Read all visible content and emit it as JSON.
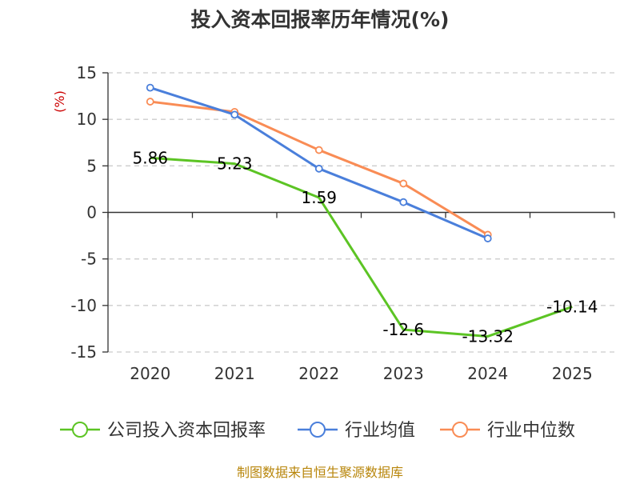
{
  "chart_data": {
    "type": "line",
    "title": "投入资本回报率历年情况(%)",
    "ylabel": "(%)",
    "xlabel": "",
    "categories": [
      "2020",
      "2021",
      "2022",
      "2023",
      "2024",
      "2025"
    ],
    "ylim": [
      -15,
      15
    ],
    "yticks": [
      15,
      10,
      5,
      0,
      -5,
      -10,
      -15
    ],
    "grid": true,
    "legend_position": "bottom",
    "series": [
      {
        "name": "公司投入资本回报率",
        "color": "#5cc424",
        "values": [
          5.86,
          5.23,
          1.59,
          -12.6,
          -13.32,
          -10.14
        ],
        "labels": [
          "5.86",
          "5.23",
          "1.59",
          "-12.6",
          "-13.32",
          "-10.14"
        ]
      },
      {
        "name": "行业均值",
        "color": "#4a7fdb",
        "values": [
          13.4,
          10.5,
          4.7,
          1.1,
          -2.8,
          null
        ]
      },
      {
        "name": "行业中位数",
        "color": "#f98c55",
        "values": [
          11.9,
          10.8,
          6.7,
          3.1,
          -2.4,
          null
        ]
      }
    ]
  },
  "source": "制图数据来自恒生聚源数据库"
}
